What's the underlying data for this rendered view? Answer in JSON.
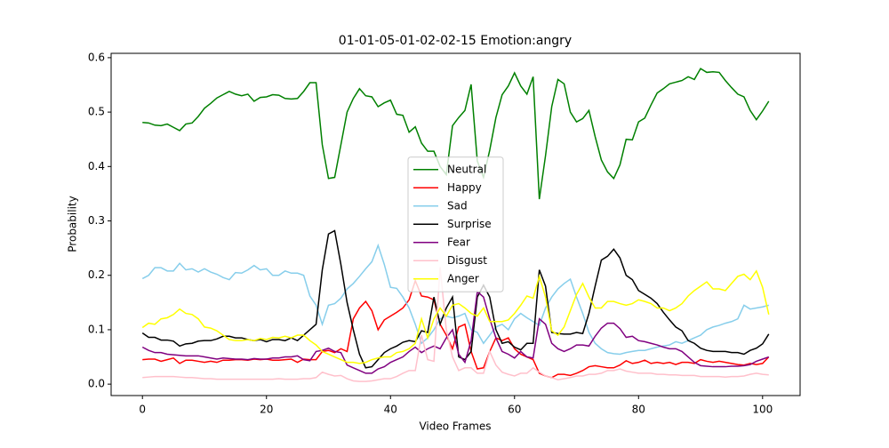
{
  "chart_data": {
    "type": "line",
    "title": "01-01-05-01-02-02-15 Emotion:angry",
    "xlabel": "Video Frames",
    "ylabel": "Probability",
    "x": [
      0,
      1,
      2,
      3,
      4,
      5,
      6,
      7,
      8,
      9,
      10,
      11,
      12,
      13,
      14,
      15,
      16,
      17,
      18,
      19,
      20,
      21,
      22,
      23,
      24,
      25,
      26,
      27,
      28,
      29,
      30,
      31,
      32,
      33,
      34,
      35,
      36,
      37,
      38,
      39,
      40,
      41,
      42,
      43,
      44,
      45,
      46,
      47,
      48,
      49,
      50,
      51,
      52,
      53,
      54,
      55,
      56,
      57,
      58,
      59,
      60,
      61,
      62,
      63,
      64,
      65,
      66,
      67,
      68,
      69,
      70,
      71,
      72,
      73,
      74,
      75,
      76,
      77,
      78,
      79,
      80,
      81,
      82,
      83,
      84,
      85,
      86,
      87,
      88,
      89,
      90,
      91,
      92,
      93,
      94,
      95,
      96,
      97,
      98,
      99,
      100,
      101
    ],
    "xlim": [
      -5.05,
      106.05
    ],
    "xticks": [
      0,
      20,
      40,
      60,
      80,
      100
    ],
    "ylim": [
      -0.021,
      0.608
    ],
    "yticks": [
      {
        "value": 0,
        "label": "0.0"
      },
      0.1,
      0.2,
      0.3,
      0.4,
      0.5,
      0.6
    ],
    "legend": "center",
    "series": [
      {
        "name": "Neutral",
        "color": "green",
        "values": [
          0.481,
          0.48,
          0.476,
          0.475,
          0.478,
          0.472,
          0.466,
          0.478,
          0.48,
          0.492,
          0.507,
          0.516,
          0.526,
          0.532,
          0.538,
          0.533,
          0.53,
          0.533,
          0.52,
          0.527,
          0.528,
          0.532,
          0.531,
          0.525,
          0.524,
          0.525,
          0.538,
          0.554,
          0.554,
          0.44,
          0.378,
          0.38,
          0.44,
          0.5,
          0.525,
          0.543,
          0.53,
          0.528,
          0.51,
          0.517,
          0.522,
          0.496,
          0.494,
          0.463,
          0.473,
          0.443,
          0.428,
          0.428,
          0.4,
          0.385,
          0.475,
          0.49,
          0.503,
          0.551,
          0.41,
          0.38,
          0.43,
          0.49,
          0.532,
          0.548,
          0.572,
          0.548,
          0.533,
          0.565,
          0.34,
          0.42,
          0.51,
          0.56,
          0.552,
          0.5,
          0.482,
          0.488,
          0.503,
          0.455,
          0.412,
          0.39,
          0.378,
          0.403,
          0.45,
          0.449,
          0.482,
          0.489,
          0.513,
          0.535,
          0.543,
          0.552,
          0.555,
          0.558,
          0.565,
          0.56,
          0.58,
          0.573,
          0.574,
          0.573,
          0.558,
          0.545,
          0.533,
          0.528,
          0.503,
          0.486,
          0.502,
          0.52
        ]
      },
      {
        "name": "Happy",
        "color": "red",
        "values": [
          0.045,
          0.046,
          0.046,
          0.042,
          0.045,
          0.048,
          0.038,
          0.044,
          0.044,
          0.042,
          0.04,
          0.042,
          0.04,
          0.044,
          0.044,
          0.045,
          0.045,
          0.044,
          0.046,
          0.045,
          0.046,
          0.044,
          0.044,
          0.045,
          0.046,
          0.04,
          0.046,
          0.045,
          0.045,
          0.06,
          0.062,
          0.058,
          0.065,
          0.06,
          0.12,
          0.14,
          0.152,
          0.135,
          0.1,
          0.118,
          0.125,
          0.132,
          0.14,
          0.155,
          0.19,
          0.162,
          0.16,
          0.155,
          0.11,
          0.09,
          0.065,
          0.105,
          0.11,
          0.06,
          0.028,
          0.03,
          0.06,
          0.085,
          0.08,
          0.085,
          0.065,
          0.055,
          0.05,
          0.045,
          0.02,
          0.015,
          0.012,
          0.018,
          0.018,
          0.016,
          0.02,
          0.025,
          0.032,
          0.034,
          0.032,
          0.03,
          0.03,
          0.035,
          0.043,
          0.038,
          0.04,
          0.044,
          0.038,
          0.04,
          0.038,
          0.04,
          0.036,
          0.04,
          0.04,
          0.038,
          0.045,
          0.042,
          0.04,
          0.042,
          0.04,
          0.038,
          0.036,
          0.035,
          0.038,
          0.036,
          0.038,
          0.05
        ]
      },
      {
        "name": "Sad",
        "color": "skyblue",
        "values": [
          0.194,
          0.2,
          0.214,
          0.214,
          0.208,
          0.208,
          0.222,
          0.21,
          0.212,
          0.206,
          0.212,
          0.206,
          0.202,
          0.196,
          0.192,
          0.205,
          0.204,
          0.21,
          0.218,
          0.21,
          0.212,
          0.2,
          0.2,
          0.208,
          0.204,
          0.204,
          0.2,
          0.162,
          0.145,
          0.11,
          0.145,
          0.148,
          0.158,
          0.175,
          0.185,
          0.198,
          0.212,
          0.225,
          0.255,
          0.22,
          0.178,
          0.176,
          0.16,
          0.14,
          0.11,
          0.075,
          0.085,
          0.1,
          0.12,
          0.125,
          0.122,
          0.125,
          0.13,
          0.1,
          0.095,
          0.075,
          0.09,
          0.105,
          0.11,
          0.1,
          0.12,
          0.13,
          0.122,
          0.115,
          0.108,
          0.14,
          0.16,
          0.175,
          0.185,
          0.193,
          0.16,
          0.13,
          0.095,
          0.075,
          0.065,
          0.058,
          0.056,
          0.055,
          0.058,
          0.06,
          0.062,
          0.062,
          0.065,
          0.068,
          0.07,
          0.072,
          0.078,
          0.075,
          0.08,
          0.085,
          0.09,
          0.1,
          0.105,
          0.108,
          0.112,
          0.115,
          0.12,
          0.145,
          0.138,
          0.14,
          0.142,
          0.145
        ]
      },
      {
        "name": "Surprise",
        "color": "black",
        "values": [
          0.094,
          0.086,
          0.086,
          0.081,
          0.081,
          0.079,
          0.07,
          0.074,
          0.075,
          0.079,
          0.08,
          0.08,
          0.083,
          0.088,
          0.088,
          0.085,
          0.085,
          0.082,
          0.08,
          0.082,
          0.078,
          0.082,
          0.082,
          0.08,
          0.085,
          0.08,
          0.09,
          0.1,
          0.11,
          0.21,
          0.276,
          0.282,
          0.22,
          0.15,
          0.1,
          0.055,
          0.03,
          0.032,
          0.045,
          0.058,
          0.065,
          0.07,
          0.077,
          0.08,
          0.078,
          0.098,
          0.095,
          0.16,
          0.11,
          0.14,
          0.16,
          0.05,
          0.045,
          0.06,
          0.16,
          0.182,
          0.16,
          0.1,
          0.075,
          0.078,
          0.068,
          0.063,
          0.075,
          0.075,
          0.21,
          0.18,
          0.095,
          0.093,
          0.092,
          0.092,
          0.095,
          0.093,
          0.13,
          0.18,
          0.228,
          0.235,
          0.248,
          0.232,
          0.2,
          0.192,
          0.172,
          0.165,
          0.158,
          0.148,
          0.132,
          0.118,
          0.105,
          0.098,
          0.08,
          0.075,
          0.066,
          0.062,
          0.06,
          0.06,
          0.06,
          0.058,
          0.058,
          0.055,
          0.062,
          0.066,
          0.074,
          0.092
        ]
      },
      {
        "name": "Fear",
        "color": "purple",
        "values": [
          0.068,
          0.062,
          0.058,
          0.058,
          0.055,
          0.054,
          0.053,
          0.052,
          0.052,
          0.052,
          0.05,
          0.048,
          0.046,
          0.048,
          0.047,
          0.046,
          0.046,
          0.045,
          0.047,
          0.046,
          0.046,
          0.048,
          0.048,
          0.05,
          0.05,
          0.052,
          0.045,
          0.043,
          0.06,
          0.062,
          0.066,
          0.06,
          0.058,
          0.035,
          0.03,
          0.025,
          0.02,
          0.02,
          0.028,
          0.032,
          0.04,
          0.045,
          0.05,
          0.06,
          0.068,
          0.058,
          0.065,
          0.07,
          0.065,
          0.085,
          0.1,
          0.055,
          0.04,
          0.08,
          0.17,
          0.16,
          0.12,
          0.085,
          0.06,
          0.055,
          0.048,
          0.06,
          0.05,
          0.048,
          0.12,
          0.11,
          0.075,
          0.065,
          0.06,
          0.065,
          0.072,
          0.072,
          0.07,
          0.088,
          0.103,
          0.112,
          0.112,
          0.102,
          0.086,
          0.088,
          0.08,
          0.078,
          0.075,
          0.072,
          0.068,
          0.065,
          0.065,
          0.06,
          0.05,
          0.04,
          0.034,
          0.033,
          0.032,
          0.032,
          0.032,
          0.033,
          0.033,
          0.034,
          0.036,
          0.042,
          0.046,
          0.05
        ]
      },
      {
        "name": "Disgust",
        "color": "pink",
        "values": [
          0.012,
          0.013,
          0.014,
          0.014,
          0.014,
          0.014,
          0.013,
          0.012,
          0.012,
          0.011,
          0.01,
          0.01,
          0.009,
          0.009,
          0.009,
          0.009,
          0.009,
          0.009,
          0.009,
          0.009,
          0.009,
          0.009,
          0.01,
          0.009,
          0.009,
          0.009,
          0.01,
          0.01,
          0.012,
          0.022,
          0.018,
          0.015,
          0.016,
          0.01,
          0.006,
          0.005,
          0.005,
          0.006,
          0.008,
          0.01,
          0.01,
          0.014,
          0.02,
          0.025,
          0.025,
          0.09,
          0.045,
          0.042,
          0.215,
          0.1,
          0.05,
          0.025,
          0.03,
          0.03,
          0.02,
          0.02,
          0.06,
          0.035,
          0.022,
          0.018,
          0.015,
          0.02,
          0.02,
          0.03,
          0.022,
          0.015,
          0.012,
          0.008,
          0.01,
          0.012,
          0.015,
          0.015,
          0.018,
          0.018,
          0.02,
          0.025,
          0.025,
          0.028,
          0.024,
          0.022,
          0.02,
          0.02,
          0.02,
          0.018,
          0.018,
          0.017,
          0.017,
          0.016,
          0.016,
          0.016,
          0.014,
          0.014,
          0.014,
          0.014,
          0.013,
          0.014,
          0.014,
          0.015,
          0.018,
          0.02,
          0.018,
          0.017
        ]
      },
      {
        "name": "Anger",
        "color": "yellow",
        "values": [
          0.104,
          0.112,
          0.11,
          0.12,
          0.122,
          0.128,
          0.138,
          0.13,
          0.128,
          0.12,
          0.105,
          0.103,
          0.098,
          0.09,
          0.082,
          0.08,
          0.08,
          0.082,
          0.08,
          0.084,
          0.082,
          0.086,
          0.085,
          0.088,
          0.085,
          0.09,
          0.09,
          0.08,
          0.072,
          0.06,
          0.055,
          0.05,
          0.045,
          0.04,
          0.04,
          0.038,
          0.04,
          0.045,
          0.048,
          0.05,
          0.05,
          0.058,
          0.06,
          0.065,
          0.075,
          0.12,
          0.085,
          0.12,
          0.14,
          0.125,
          0.145,
          0.148,
          0.14,
          0.13,
          0.125,
          0.14,
          0.115,
          0.115,
          0.115,
          0.118,
          0.13,
          0.145,
          0.162,
          0.158,
          0.198,
          0.16,
          0.098,
          0.09,
          0.105,
          0.135,
          0.165,
          0.185,
          0.16,
          0.14,
          0.14,
          0.152,
          0.152,
          0.148,
          0.145,
          0.148,
          0.155,
          0.152,
          0.148,
          0.14,
          0.14,
          0.135,
          0.14,
          0.148,
          0.162,
          0.172,
          0.18,
          0.188,
          0.175,
          0.175,
          0.172,
          0.185,
          0.198,
          0.202,
          0.192,
          0.208,
          0.178,
          0.128
        ]
      }
    ]
  }
}
